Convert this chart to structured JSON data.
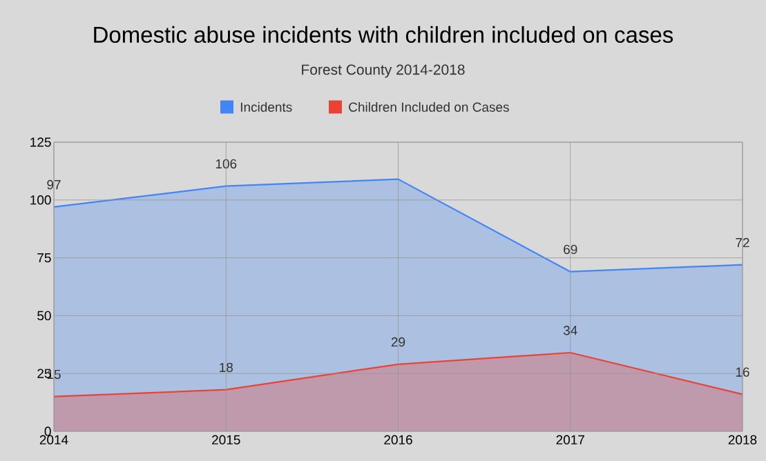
{
  "chart_data": {
    "type": "area",
    "title": "Domestic abuse incidents with children included on cases",
    "subtitle": "Forest County 2014-2018",
    "x": [
      2014,
      2015,
      2016,
      2017,
      2018
    ],
    "series": [
      {
        "name": "Incidents",
        "color": "#4285f4",
        "values": [
          97,
          106,
          109,
          69,
          72
        ],
        "value_labels": [
          "97",
          "106",
          null,
          "69",
          "72"
        ]
      },
      {
        "name": "Children Included on Cases",
        "color": "#ea4335",
        "values": [
          15,
          18,
          29,
          34,
          16
        ],
        "value_labels": [
          "15",
          "18",
          "29",
          "34",
          "16"
        ]
      }
    ],
    "xlim": [
      2014,
      2018
    ],
    "ylim": [
      0,
      125
    ],
    "xticks": [
      2014,
      2015,
      2016,
      2017,
      2018
    ],
    "yticks": [
      0,
      25,
      50,
      75,
      100,
      125
    ],
    "grid": true,
    "legend": "top"
  }
}
